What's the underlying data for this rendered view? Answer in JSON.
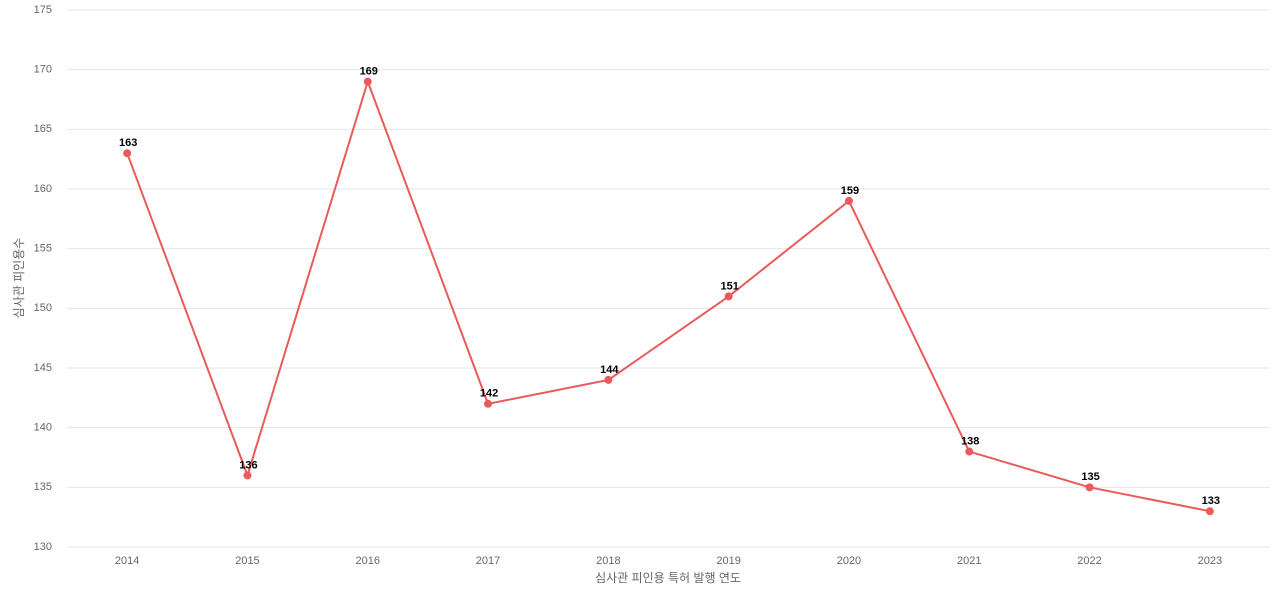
{
  "chart_data": {
    "type": "line",
    "x_label": "심사관 피인용 특허 발행 연도",
    "y_label": "심사관 피인용수",
    "categories": [
      "2014",
      "2015",
      "2016",
      "2017",
      "2018",
      "2019",
      "2020",
      "2021",
      "2022",
      "2023"
    ],
    "values": [
      163,
      136,
      169,
      142,
      144,
      151,
      159,
      138,
      135,
      133
    ],
    "color": "#eb5a5a",
    "ylim": [
      130,
      175
    ],
    "yticks": [
      130,
      135,
      140,
      145,
      150,
      155,
      160,
      165,
      170,
      175
    ],
    "grid": true
  }
}
